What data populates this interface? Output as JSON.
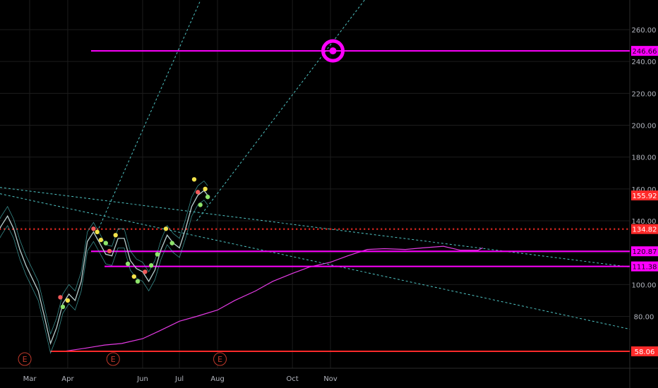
{
  "colors": {
    "background": "#000000",
    "grid": "#1c1c1c",
    "axis_text": "#b2b5be",
    "magenta": "#ff00ff",
    "red": "#ff2a2a",
    "dotted_red": "#e0261f",
    "teal": "#4fc3c3",
    "price_line": "#b8cfcf",
    "candle_dot_green": "#8ee36b",
    "candle_dot_yellow": "#f2e34a",
    "candle_dot_red": "#f25a5a",
    "sma": "#e43ae4",
    "earnings": "#c0392b"
  },
  "chart_data": {
    "type": "line",
    "y_axis": {
      "ticks": [
        "80.00",
        "100.00",
        "120.00",
        "140.00",
        "160.00",
        "180.00",
        "200.00",
        "220.00",
        "240.00",
        "260.00"
      ],
      "tick_values": [
        80,
        100,
        120,
        140,
        160,
        180,
        200,
        220,
        240,
        260
      ],
      "ylim": [
        52,
        282
      ]
    },
    "x_axis": {
      "ticks": [
        "Mar",
        "Apr",
        "Jun",
        "Jul",
        "Aug",
        "Oct",
        "Nov"
      ],
      "tick_dates": [
        "Mar 1",
        "Apr 1",
        "Jun 1",
        "Jul 1",
        "Aug 1",
        "Oct 1",
        "Nov 1"
      ]
    },
    "price_labels": [
      {
        "text": "246.66",
        "value": 246.66,
        "style": "magenta"
      },
      {
        "text": "155.92",
        "value": 155.92,
        "style": "red"
      },
      {
        "text": "134.82",
        "value": 134.82,
        "style": "red"
      },
      {
        "text": "120.87",
        "value": 120.87,
        "style": "magenta"
      },
      {
        "text": "111.38",
        "value": 111.38,
        "style": "magenta"
      },
      {
        "text": "58.06",
        "value": 58.06,
        "style": "red"
      }
    ],
    "horizontal_levels": [
      {
        "value": 246.66,
        "from": "Apr 20",
        "color": "magenta"
      },
      {
        "value": 134.82,
        "from": "Feb 1",
        "color": "dotted_red"
      },
      {
        "value": 120.87,
        "from": "Apr 20",
        "color": "magenta"
      },
      {
        "value": 111.38,
        "from": "May 1",
        "color": "magenta"
      },
      {
        "value": 58.06,
        "from": "Mar 18",
        "color": "red"
      }
    ],
    "target_marker": {
      "date": "Nov 3",
      "value": 246.66
    },
    "price_series": {
      "x": [
        "Feb 1",
        "Feb 6",
        "Feb 11",
        "Feb 16",
        "Feb 21",
        "Feb 26",
        "Mar 3",
        "Mar 8",
        "Mar 13",
        "Mar 18",
        "Mar 23",
        "Mar 28",
        "Apr 2",
        "Apr 7",
        "Apr 12",
        "Apr 17",
        "Apr 22",
        "Apr 27",
        "May 2",
        "May 7",
        "May 12",
        "May 17",
        "May 22",
        "May 27",
        "Jun 1",
        "Jun 6",
        "Jun 11",
        "Jun 16",
        "Jun 21",
        "Jun 26",
        "Jul 1",
        "Jul 6",
        "Jul 11",
        "Jul 16",
        "Jul 21",
        "Jul 24"
      ],
      "values": [
        130,
        137,
        143,
        135,
        122,
        112,
        104,
        96,
        80,
        63,
        73,
        88,
        94,
        90,
        102,
        127,
        133,
        126,
        119,
        118,
        129,
        129,
        115,
        110,
        108,
        102,
        109,
        122,
        131,
        126,
        123,
        135,
        149,
        156,
        159,
        156
      ]
    },
    "sma_series": {
      "x": [
        "Mar 28",
        "Apr 15",
        "May 1",
        "May 15",
        "Jun 1",
        "Jun 15",
        "Jul 1",
        "Jul 15",
        "Aug 1",
        "Aug 15",
        "Sep 1",
        "Sep 15",
        "Oct 1",
        "Oct 15",
        "Nov 1",
        "Nov 15",
        "Dec 1",
        "Dec 15",
        "Jan 1",
        "Jan 15",
        "Feb 1",
        "Feb 15",
        "Mar 1",
        "Mar 5"
      ],
      "values": [
        58,
        60,
        62,
        63,
        66,
        71,
        77,
        80,
        84,
        90,
        96,
        102,
        107,
        111,
        114,
        118,
        122,
        122.5,
        122,
        123,
        124,
        121.5,
        121.5,
        123
      ]
    },
    "trendlines": [
      {
        "from": [
          "Apr 25",
          133
        ],
        "to": [
          "Jul 26",
          292
        ],
        "style": "dashed"
      },
      {
        "from": [
          "Jul 15",
          140
        ],
        "to": [
          "Dec 12",
          292
        ],
        "style": "dashed"
      },
      {
        "from": [
          "Jan 25",
          161
        ],
        "to": [
          "Mar 25",
          111
        ],
        "style": "dashed"
      },
      {
        "from": [
          "Jan 25",
          157
        ],
        "to": [
          "Mar 25",
          72
        ],
        "style": "dashed"
      }
    ],
    "earnings_markers": [
      {
        "date": "Feb 25",
        "label": "E"
      },
      {
        "date": "May 8",
        "label": "E"
      },
      {
        "date": "Aug 3",
        "label": "E"
      }
    ],
    "dots": [
      {
        "x": "Jun 20",
        "y": 135,
        "c": "yellow"
      },
      {
        "x": "Jun 25",
        "y": 126,
        "c": "green"
      },
      {
        "x": "Apr 22",
        "y": 135,
        "c": "red"
      },
      {
        "x": "Apr 25",
        "y": 133,
        "c": "yellow"
      },
      {
        "x": "Apr 28",
        "y": 128,
        "c": "yellow"
      },
      {
        "x": "May 2",
        "y": 126,
        "c": "green"
      },
      {
        "x": "May 5",
        "y": 121,
        "c": "red"
      },
      {
        "x": "May 10",
        "y": 131,
        "c": "yellow"
      },
      {
        "x": "May 20",
        "y": 113,
        "c": "green"
      },
      {
        "x": "May 25",
        "y": 105,
        "c": "yellow"
      },
      {
        "x": "May 28",
        "y": 102,
        "c": "green"
      },
      {
        "x": "Jun 3",
        "y": 108,
        "c": "red"
      },
      {
        "x": "Jun 8",
        "y": 112,
        "c": "green"
      },
      {
        "x": "Jun 13",
        "y": 119,
        "c": "green"
      },
      {
        "x": "Mar 26",
        "y": 92,
        "c": "red"
      },
      {
        "x": "Mar 28",
        "y": 86,
        "c": "green"
      },
      {
        "x": "Apr 1",
        "y": 90,
        "c": "yellow"
      },
      {
        "x": "Jul 13",
        "y": 166,
        "c": "yellow"
      },
      {
        "x": "Jul 16",
        "y": 158,
        "c": "red"
      },
      {
        "x": "Jul 18",
        "y": 150,
        "c": "green"
      },
      {
        "x": "Jul 22",
        "y": 160,
        "c": "yellow"
      },
      {
        "x": "Jul 24",
        "y": 155,
        "c": "green"
      }
    ]
  }
}
